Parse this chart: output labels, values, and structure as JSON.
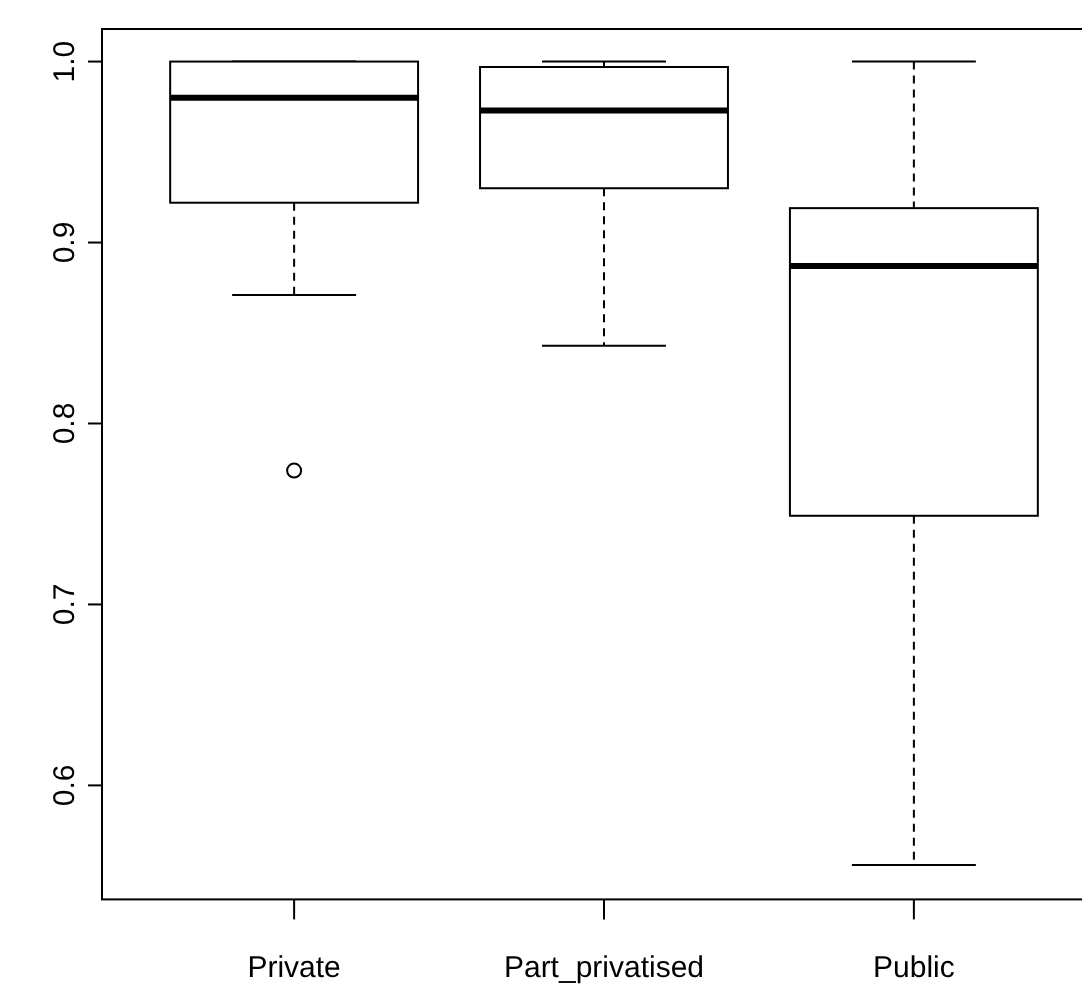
{
  "chart_data": {
    "type": "box",
    "categories": [
      "Private",
      "Part_privatised",
      "Public"
    ],
    "boxes": [
      {
        "low": 0.871,
        "q1": 0.922,
        "median": 0.98,
        "q3": 1.0,
        "high": 1.0,
        "outliers": [
          0.774
        ]
      },
      {
        "low": 0.843,
        "q1": 0.93,
        "median": 0.973,
        "q3": 0.997,
        "high": 1.0
      },
      {
        "low": 0.556,
        "q1": 0.749,
        "median": 0.887,
        "q3": 0.919,
        "high": 1.0
      }
    ],
    "ylim": [
      0.537,
      1.018
    ],
    "yticks": [
      {
        "value": 0.6,
        "label": "0.6"
      },
      {
        "value": 0.7,
        "label": "0.7"
      },
      {
        "value": 0.8,
        "label": "0.8"
      },
      {
        "value": 0.9,
        "label": "0.9"
      },
      {
        "value": 1.0,
        "label": "1.0"
      }
    ],
    "grid": false
  }
}
